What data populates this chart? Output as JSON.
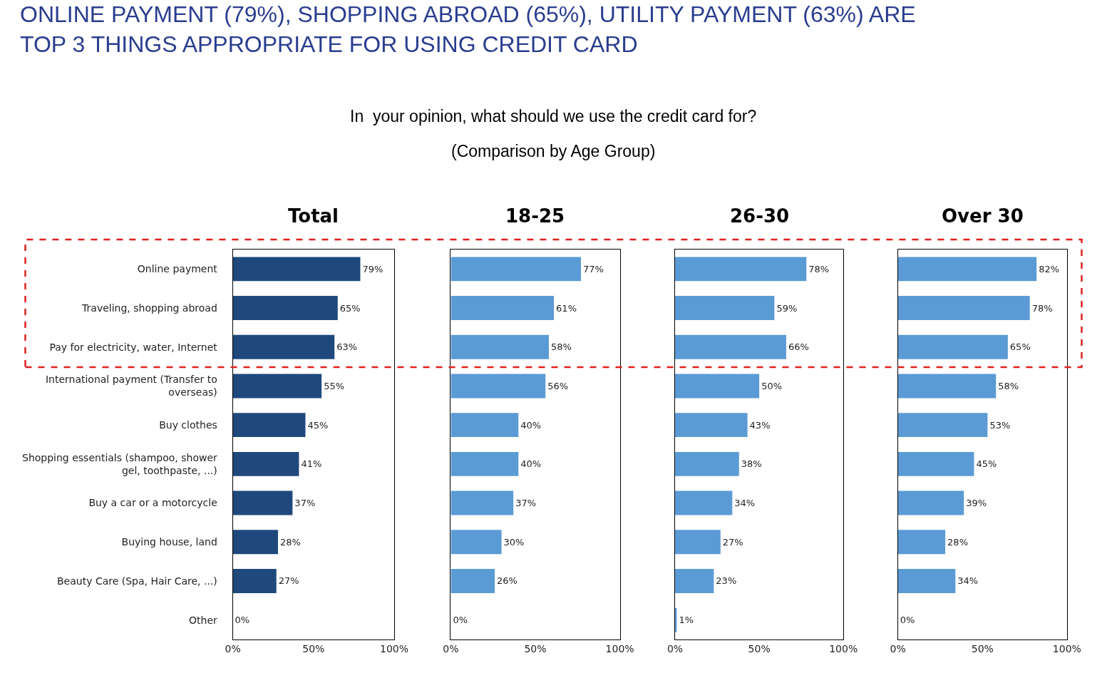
{
  "chart_data": [
    {
      "type": "bar",
      "orientation": "horizontal",
      "title": "Total",
      "annotations": [
        "ONLINE PAYMENT (79%), SHOPPING ABROAD (65%), UTILITY PAYMENT (63%) ARE TOP 3 THINGS APPROPRIATE FOR USING CREDIT CARD",
        "In  your opinion, what should we use the credit card for?",
        "(Comparison by Age Group)"
      ],
      "categories": [
        "Online payment",
        "Traveling, shopping abroad",
        "Pay for electricity, water, Internet",
        "International payment (Transfer to overseas)",
        "Buy clothes",
        "Shopping essentials (shampoo, shower gel, toothpaste, ...)",
        "Buy a car or a motorcycle",
        "Buying house, land",
        "Beauty Care (Spa, Hair Care, ...)",
        "Other"
      ],
      "values": [
        79,
        65,
        63,
        55,
        45,
        41,
        37,
        28,
        27,
        0
      ],
      "value_labels": [
        "79%",
        "65%",
        "63%",
        "55%",
        "45%",
        "41%",
        "37%",
        "28%",
        "27%",
        "0%"
      ],
      "color": "#1f497d",
      "xlim": [
        0,
        100
      ],
      "xticks": [
        {
          "value": 0,
          "label": "0%"
        },
        {
          "value": 50,
          "label": "50%"
        },
        {
          "value": 100,
          "label": "100%"
        }
      ],
      "grid": false,
      "legend": false
    },
    {
      "type": "bar",
      "orientation": "horizontal",
      "title": "18-25",
      "categories": [
        null,
        null,
        null,
        null,
        null,
        null,
        null,
        null,
        null,
        null
      ],
      "values": [
        77,
        61,
        58,
        56,
        40,
        40,
        37,
        30,
        26,
        0
      ],
      "value_labels": [
        "77%",
        "61%",
        "58%",
        "56%",
        "40%",
        "40%",
        "37%",
        "30%",
        "26%",
        "0%"
      ],
      "color": "#5b9bd5",
      "xlim": [
        0,
        100
      ],
      "xticks": [
        {
          "value": 0,
          "label": "0%"
        },
        {
          "value": 50,
          "label": "50%"
        },
        {
          "value": 100,
          "label": "100%"
        }
      ],
      "grid": false,
      "legend": false
    },
    {
      "type": "bar",
      "orientation": "horizontal",
      "title": "26-30",
      "categories": [
        null,
        null,
        null,
        null,
        null,
        null,
        null,
        null,
        null,
        null
      ],
      "values": [
        78,
        59,
        66,
        50,
        43,
        38,
        34,
        27,
        23,
        1
      ],
      "value_labels": [
        "78%",
        "59%",
        "66%",
        "50%",
        "43%",
        "38%",
        "34%",
        "27%",
        "23%",
        "1%"
      ],
      "color": "#5b9bd5",
      "xlim": [
        0,
        100
      ],
      "xticks": [
        {
          "value": 0,
          "label": "0%"
        },
        {
          "value": 50,
          "label": "50%"
        },
        {
          "value": 100,
          "label": "100%"
        }
      ],
      "grid": false,
      "legend": false
    },
    {
      "type": "bar",
      "orientation": "horizontal",
      "title": "Over 30",
      "categories": [
        null,
        null,
        null,
        null,
        null,
        null,
        null,
        null,
        null,
        null
      ],
      "values": [
        82,
        78,
        65,
        58,
        53,
        45,
        39,
        28,
        34,
        0
      ],
      "value_labels": [
        "82%",
        "78%",
        "65%",
        "58%",
        "53%",
        "45%",
        "39%",
        "28%",
        "34%",
        "0%"
      ],
      "color": "#5b9bd5",
      "xlim": [
        0,
        100
      ],
      "xticks": [
        {
          "value": 0,
          "label": "0%"
        },
        {
          "value": 50,
          "label": "50%"
        },
        {
          "value": 100,
          "label": "100%"
        }
      ],
      "grid": false,
      "legend": false
    }
  ]
}
